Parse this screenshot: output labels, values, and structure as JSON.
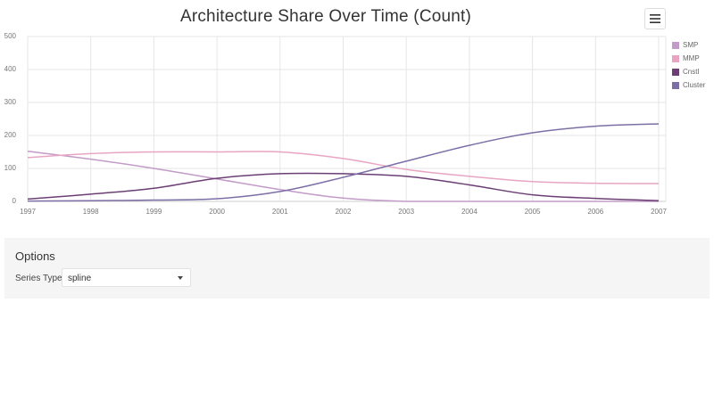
{
  "chart_data": {
    "type": "line",
    "subtype": "spline",
    "title": "Architecture Share Over Time (Count)",
    "xlabel": "",
    "ylabel": "",
    "x": [
      "1997",
      "1998",
      "1999",
      "2000",
      "2001",
      "2002",
      "2003",
      "2004",
      "2005",
      "2006",
      "2007"
    ],
    "ylim": [
      0,
      500
    ],
    "yticks": [
      "0",
      "100",
      "200",
      "300",
      "400",
      "500"
    ],
    "grid": true,
    "legend_position": "right",
    "series": [
      {
        "name": "SMP",
        "color": "#c39bc8",
        "values": [
          152,
          128,
          100,
          68,
          36,
          10,
          0,
          0,
          0,
          0,
          0
        ]
      },
      {
        "name": "MMP",
        "color": "#e8a5c3",
        "values": [
          133,
          145,
          150,
          150,
          150,
          130,
          97,
          76,
          60,
          55,
          54
        ]
      },
      {
        "name": "Cnstl",
        "color": "#6b3f74",
        "values": [
          7,
          22,
          40,
          70,
          84,
          84,
          76,
          50,
          20,
          9,
          2
        ]
      },
      {
        "name": "Cluster",
        "color": "#7c6fa6",
        "values": [
          1,
          2,
          4,
          8,
          30,
          73,
          122,
          170,
          208,
          228,
          235
        ]
      }
    ]
  },
  "header": {
    "title": "Architecture Share Over Time (Count)",
    "menu_icon": "hamburger-icon"
  },
  "options": {
    "title": "Options",
    "series_type_label": "Series Type",
    "series_type_value": "spline"
  }
}
